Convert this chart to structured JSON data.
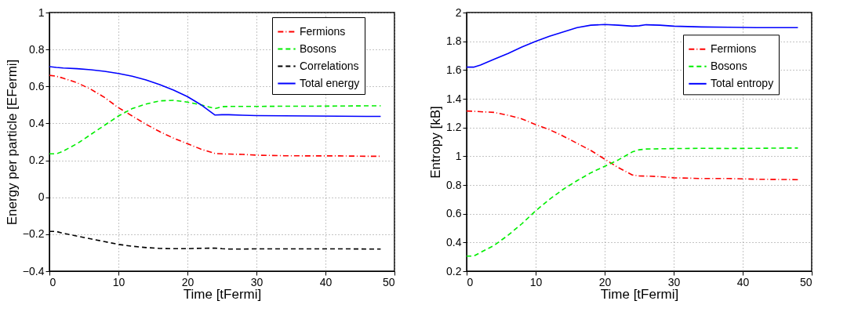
{
  "chart_data": [
    {
      "type": "line",
      "xlabel": "Time [tFermi]",
      "ylabel": "Energy per particle [EFermi]",
      "xlim": [
        0,
        50
      ],
      "ylim": [
        -0.4,
        1
      ],
      "xticks": [
        0,
        10,
        20,
        30,
        40,
        50
      ],
      "yticks": [
        -0.4,
        -0.2,
        0,
        0.2,
        0.4,
        0.6,
        0.8,
        1
      ],
      "grid": true,
      "legend": "top right",
      "x": [
        0,
        1,
        2,
        4,
        6,
        8,
        10,
        12,
        14,
        16,
        18,
        20,
        22,
        24,
        25,
        26,
        28,
        30,
        34,
        38,
        42,
        46,
        48
      ],
      "series": [
        {
          "name": "Fermions",
          "color": "#ff0000",
          "line_style": "dashdot",
          "values": [
            0.66,
            0.655,
            0.645,
            0.62,
            0.585,
            0.54,
            0.485,
            0.44,
            0.395,
            0.355,
            0.32,
            0.29,
            0.26,
            0.237,
            0.235,
            0.234,
            0.232,
            0.228,
            0.225,
            0.224,
            0.224,
            0.222,
            0.222
          ]
        },
        {
          "name": "Bosons",
          "color": "#00ee00",
          "line_style": "dashed",
          "values": [
            0.235,
            0.235,
            0.25,
            0.29,
            0.34,
            0.39,
            0.44,
            0.48,
            0.505,
            0.522,
            0.525,
            0.515,
            0.5,
            0.48,
            0.49,
            0.492,
            0.492,
            0.492,
            0.493,
            0.493,
            0.494,
            0.495,
            0.495
          ]
        },
        {
          "name": "Correlations",
          "color": "#000000",
          "line_style": "dashed",
          "values": [
            -0.185,
            -0.185,
            -0.195,
            -0.21,
            -0.225,
            -0.24,
            -0.255,
            -0.265,
            -0.272,
            -0.277,
            -0.278,
            -0.278,
            -0.276,
            -0.275,
            -0.278,
            -0.28,
            -0.28,
            -0.279,
            -0.279,
            -0.279,
            -0.279,
            -0.28,
            -0.28
          ]
        },
        {
          "name": "Total energy",
          "color": "#0000ff",
          "line_style": "solid",
          "values": [
            0.707,
            0.703,
            0.7,
            0.696,
            0.69,
            0.682,
            0.67,
            0.655,
            0.635,
            0.61,
            0.58,
            0.545,
            0.5,
            0.445,
            0.447,
            0.447,
            0.444,
            0.442,
            0.441,
            0.44,
            0.439,
            0.438,
            0.438
          ]
        }
      ]
    },
    {
      "type": "line",
      "xlabel": "Time [tFermi]",
      "ylabel": "Entropy [kB]",
      "xlim": [
        0,
        50
      ],
      "ylim": [
        0.2,
        2
      ],
      "xticks": [
        0,
        10,
        20,
        30,
        40,
        50
      ],
      "yticks": [
        0.2,
        0.4,
        0.6,
        0.8,
        1,
        1.2,
        1.4,
        1.6,
        1.8,
        2
      ],
      "grid": true,
      "legend": "top right",
      "x": [
        0,
        1,
        2,
        4,
        6,
        8,
        10,
        12,
        14,
        16,
        18,
        20,
        22,
        24,
        25,
        26,
        28,
        30,
        34,
        38,
        42,
        46,
        48
      ],
      "series": [
        {
          "name": "Fermions",
          "color": "#ff0000",
          "line_style": "dashdot",
          "values": [
            1.315,
            1.313,
            1.31,
            1.305,
            1.285,
            1.26,
            1.22,
            1.185,
            1.14,
            1.09,
            1.04,
            0.98,
            0.92,
            0.87,
            0.863,
            0.862,
            0.858,
            0.85,
            0.845,
            0.845,
            0.84,
            0.838,
            0.837
          ]
        },
        {
          "name": "Bosons",
          "color": "#00ee00",
          "line_style": "dashed",
          "values": [
            0.305,
            0.305,
            0.33,
            0.38,
            0.45,
            0.53,
            0.62,
            0.7,
            0.77,
            0.83,
            0.885,
            0.93,
            0.975,
            1.03,
            1.045,
            1.05,
            1.052,
            1.053,
            1.055,
            1.054,
            1.055,
            1.057,
            1.057
          ]
        },
        {
          "name": "Total entropy",
          "color": "#0000ff",
          "line_style": "solid",
          "values": [
            1.62,
            1.62,
            1.635,
            1.675,
            1.715,
            1.76,
            1.8,
            1.835,
            1.865,
            1.895,
            1.912,
            1.917,
            1.912,
            1.905,
            1.908,
            1.915,
            1.912,
            1.905,
            1.9,
            1.898,
            1.895,
            1.895,
            1.895
          ]
        }
      ]
    }
  ]
}
